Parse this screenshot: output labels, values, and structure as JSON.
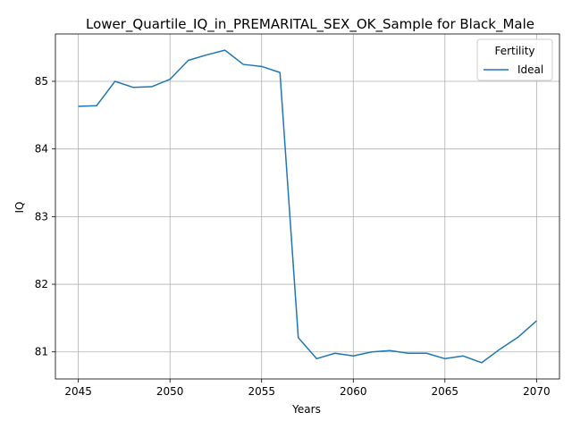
{
  "chart_data": {
    "type": "line",
    "title": "Lower_Quartile_IQ_in_PREMARITAL_SEX_OK_Sample for Black_Male",
    "xlabel": "Years",
    "ylabel": "IQ",
    "xlim": [
      2043.75,
      2071.25
    ],
    "ylim": [
      80.6,
      85.7
    ],
    "xticks": [
      2045,
      2050,
      2055,
      2060,
      2065,
      2070
    ],
    "yticks": [
      81,
      82,
      83,
      84,
      85
    ],
    "grid": true,
    "legend": {
      "title": "Fertility",
      "position": "top-right"
    },
    "series": [
      {
        "name": "Ideal",
        "color": "#1f77b4",
        "x": [
          2045,
          2046,
          2047,
          2048,
          2049,
          2050,
          2051,
          2052,
          2053,
          2054,
          2055,
          2056,
          2057,
          2058,
          2059,
          2060,
          2061,
          2062,
          2063,
          2064,
          2065,
          2066,
          2067,
          2068,
          2069,
          2070
        ],
        "y": [
          84.63,
          84.64,
          85.0,
          84.91,
          84.92,
          85.03,
          85.31,
          85.39,
          85.46,
          85.25,
          85.22,
          85.13,
          81.21,
          80.9,
          80.98,
          80.94,
          81.0,
          81.02,
          80.98,
          80.98,
          80.9,
          80.94,
          80.84,
          81.04,
          81.22,
          81.46
        ]
      }
    ]
  }
}
